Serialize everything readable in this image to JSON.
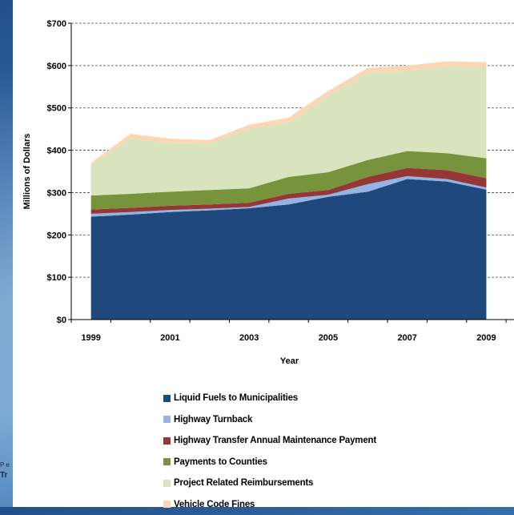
{
  "background_text": {
    "line1": "P e",
    "line2": "Tr"
  },
  "chart_data": {
    "type": "area",
    "stacked": true,
    "x": [
      1999,
      2000,
      2001,
      2002,
      2003,
      2004,
      2005,
      2006,
      2007,
      2008,
      2009
    ],
    "xticks": [
      {
        "value": 1999,
        "label": "1999"
      },
      {
        "value": 2001,
        "label": "2001"
      },
      {
        "value": 2003,
        "label": "2003"
      },
      {
        "value": 2005,
        "label": "2005"
      },
      {
        "value": 2007,
        "label": "2007"
      },
      {
        "value": 2009,
        "label": "2009"
      }
    ],
    "yticks": [
      {
        "value": 0,
        "label": "$0"
      },
      {
        "value": 100,
        "label": "$100"
      },
      {
        "value": 200,
        "label": "$200"
      },
      {
        "value": 300,
        "label": "$300"
      },
      {
        "value": 400,
        "label": "$400"
      },
      {
        "value": 500,
        "label": "$500"
      },
      {
        "value": 600,
        "label": "$600"
      },
      {
        "value": 700,
        "label": "$700"
      }
    ],
    "ylim": [
      0,
      700
    ],
    "xlabel": "Year",
    "ylabel": "Millions of Dollars",
    "grid": "horizontal dashed",
    "legend_position": "bottom",
    "series": [
      {
        "name": "Liquid Fuels to Municipalities",
        "color": "#1f497d",
        "values": [
          243,
          248,
          254,
          258,
          263,
          272,
          290,
          302,
          332,
          326,
          307
        ]
      },
      {
        "name": "Highway Turnback",
        "color": "#95b3e3",
        "values": [
          7,
          6,
          5,
          4,
          3,
          14,
          5,
          18,
          7,
          6,
          5
        ]
      },
      {
        "name": "Highway Transfer Annual Maintenance Payment",
        "color": "#953735",
        "values": [
          10,
          10,
          10,
          10,
          10,
          11,
          11,
          17,
          19,
          21,
          22
        ]
      },
      {
        "name": "Payments to Counties",
        "color": "#77933c",
        "values": [
          33,
          33,
          33,
          34,
          34,
          40,
          42,
          40,
          40,
          40,
          47
        ]
      },
      {
        "name": "Project Related Reimbursements",
        "color": "#d7e4bd",
        "values": [
          72,
          130,
          115,
          110,
          140,
          128,
          180,
          205,
          190,
          205,
          215
        ]
      },
      {
        "name": "Vehicle Code Fines",
        "color": "#fcd5b5",
        "values": [
          5,
          12,
          10,
          8,
          10,
          12,
          12,
          12,
          12,
          12,
          12
        ]
      }
    ]
  }
}
